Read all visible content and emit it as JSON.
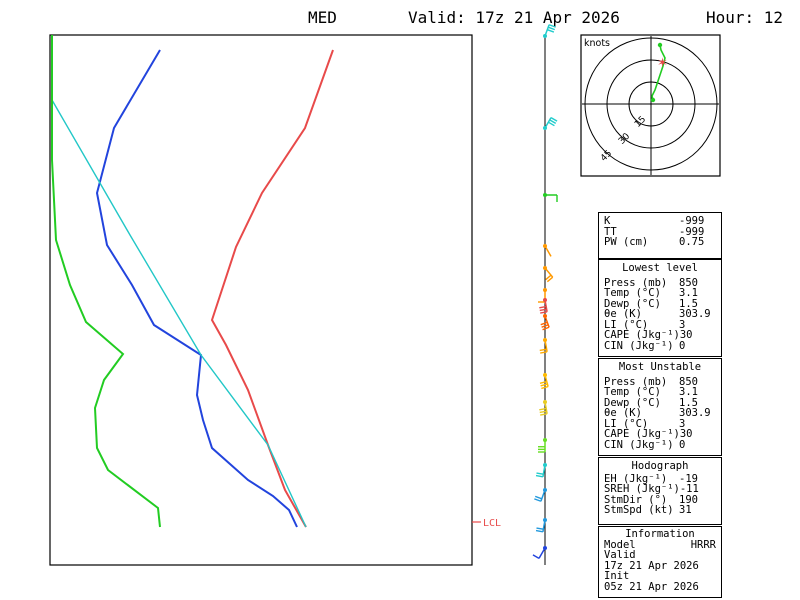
{
  "header": {
    "station": "MED",
    "valid": "Valid: 17z 21 Apr 2026",
    "hour": "Hour: 12"
  },
  "chart_data": {
    "type": "line",
    "lcl_label": "LCL",
    "series": [
      {
        "color": "#e84a4a"
      },
      {
        "color": "#2244dd"
      },
      {
        "color": "#22c7c7"
      },
      {
        "color": "#22cc22"
      }
    ],
    "hodograph": {
      "label": "knots",
      "ring_labels": [
        "15",
        "30",
        "45"
      ]
    }
  },
  "indices": [
    {
      "k": "K",
      "v": "-999"
    },
    {
      "k": "TT",
      "v": "-999"
    },
    {
      "k": "PW (cm)",
      "v": "0.75"
    }
  ],
  "lowest": {
    "title": "Lowest level",
    "rows": [
      {
        "k": "Press (mb)",
        "v": "850"
      },
      {
        "k": "Temp (°C)",
        "v": "3.1"
      },
      {
        "k": "Dewp (°C)",
        "v": "1.5"
      },
      {
        "k": "θe (K)",
        "v": "303.9"
      },
      {
        "k": "LI (°C)",
        "v": "3"
      },
      {
        "k": "CAPE (Jkg⁻¹)",
        "v": "30"
      },
      {
        "k": "CIN (Jkg⁻¹)",
        "v": "0"
      }
    ]
  },
  "most_unstable": {
    "title": "Most Unstable",
    "rows": [
      {
        "k": "Press (mb)",
        "v": "850"
      },
      {
        "k": "Temp (°C)",
        "v": "3.1"
      },
      {
        "k": "Dewp (°C)",
        "v": "1.5"
      },
      {
        "k": "θe (K)",
        "v": "303.9"
      },
      {
        "k": "LI (°C)",
        "v": "3"
      },
      {
        "k": "CAPE (Jkg⁻¹)",
        "v": "30"
      },
      {
        "k": "CIN (Jkg⁻¹)",
        "v": "0"
      }
    ]
  },
  "hodograph_panel": {
    "title": "Hodograph",
    "rows": [
      {
        "k": "EH (Jkg⁻¹)",
        "v": "-19"
      },
      {
        "k": "SREH (Jkg⁻¹)",
        "v": "-11"
      },
      {
        "k": "",
        "v": ""
      },
      {
        "k": "StmDir (°)",
        "v": "190"
      },
      {
        "k": "StmSpd (kt)",
        "v": "31"
      }
    ]
  },
  "information": {
    "title": "Information",
    "model_label": "Model",
    "model_value": "HRRR",
    "valid_label": "Valid",
    "valid_value": "17z 21 Apr 2026",
    "init_label": "Init",
    "init_value": "05z 21 Apr 2026"
  }
}
